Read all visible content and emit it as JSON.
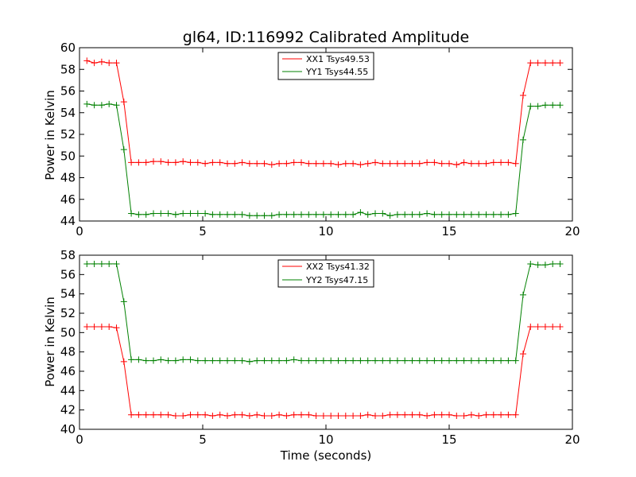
{
  "chart_data": [
    {
      "type": "line",
      "title": "gl64, ID:116992 Calibrated Amplitude",
      "xlabel": "",
      "ylabel": "Power in Kelvin",
      "xlim": [
        0,
        20
      ],
      "ylim": [
        44,
        60
      ],
      "xticks": [
        0,
        5,
        10,
        15,
        20
      ],
      "yticks": [
        44,
        46,
        48,
        50,
        52,
        54,
        56,
        58,
        60
      ],
      "grid": false,
      "legend_position": "top-center",
      "x": [
        0.3,
        0.6,
        0.9,
        1.2,
        1.5,
        1.8,
        2.1,
        2.4,
        2.7,
        3.0,
        3.3,
        3.6,
        3.9,
        4.2,
        4.5,
        4.8,
        5.1,
        5.4,
        5.7,
        6.0,
        6.3,
        6.6,
        6.9,
        7.2,
        7.5,
        7.8,
        8.1,
        8.4,
        8.7,
        9.0,
        9.3,
        9.6,
        9.9,
        10.2,
        10.5,
        10.8,
        11.1,
        11.4,
        11.7,
        12.0,
        12.3,
        12.6,
        12.9,
        13.2,
        13.5,
        13.8,
        14.1,
        14.4,
        14.7,
        15.0,
        15.3,
        15.6,
        15.9,
        16.2,
        16.5,
        16.8,
        17.1,
        17.4,
        17.7,
        18.0,
        18.3,
        18.6,
        18.9,
        19.2,
        19.5
      ],
      "series": [
        {
          "name": "XX1 Tsys49.53",
          "color": "#ff0000",
          "values": [
            58.8,
            58.6,
            58.7,
            58.6,
            58.6,
            55.0,
            49.4,
            49.4,
            49.4,
            49.5,
            49.5,
            49.4,
            49.4,
            49.5,
            49.4,
            49.4,
            49.3,
            49.4,
            49.4,
            49.3,
            49.3,
            49.4,
            49.3,
            49.3,
            49.3,
            49.2,
            49.3,
            49.3,
            49.4,
            49.4,
            49.3,
            49.3,
            49.3,
            49.3,
            49.2,
            49.3,
            49.3,
            49.2,
            49.3,
            49.4,
            49.3,
            49.3,
            49.3,
            49.3,
            49.3,
            49.3,
            49.4,
            49.4,
            49.3,
            49.3,
            49.2,
            49.4,
            49.3,
            49.3,
            49.3,
            49.4,
            49.4,
            49.4,
            49.3,
            55.6,
            58.6,
            58.6,
            58.6,
            58.6,
            58.6
          ]
        },
        {
          "name": "YY1 Tsys44.55",
          "color": "#008000",
          "values": [
            54.8,
            54.7,
            54.7,
            54.8,
            54.7,
            50.6,
            44.7,
            44.6,
            44.6,
            44.7,
            44.7,
            44.7,
            44.6,
            44.7,
            44.7,
            44.7,
            44.7,
            44.6,
            44.6,
            44.6,
            44.6,
            44.6,
            44.5,
            44.5,
            44.5,
            44.5,
            44.6,
            44.6,
            44.6,
            44.6,
            44.6,
            44.6,
            44.6,
            44.6,
            44.6,
            44.6,
            44.6,
            44.8,
            44.6,
            44.7,
            44.7,
            44.5,
            44.6,
            44.6,
            44.6,
            44.6,
            44.7,
            44.6,
            44.6,
            44.6,
            44.6,
            44.6,
            44.6,
            44.6,
            44.6,
            44.6,
            44.6,
            44.6,
            44.7,
            51.5,
            54.6,
            54.6,
            54.7,
            54.7,
            54.7
          ]
        }
      ]
    },
    {
      "type": "line",
      "title": "",
      "xlabel": "Time (seconds)",
      "ylabel": "Power in Kelvin",
      "xlim": [
        0,
        20
      ],
      "ylim": [
        40,
        58
      ],
      "xticks": [
        0,
        5,
        10,
        15,
        20
      ],
      "yticks": [
        40,
        42,
        44,
        46,
        48,
        50,
        52,
        54,
        56,
        58
      ],
      "grid": false,
      "legend_position": "top-center",
      "x": [
        0.3,
        0.6,
        0.9,
        1.2,
        1.5,
        1.8,
        2.1,
        2.4,
        2.7,
        3.0,
        3.3,
        3.6,
        3.9,
        4.2,
        4.5,
        4.8,
        5.1,
        5.4,
        5.7,
        6.0,
        6.3,
        6.6,
        6.9,
        7.2,
        7.5,
        7.8,
        8.1,
        8.4,
        8.7,
        9.0,
        9.3,
        9.6,
        9.9,
        10.2,
        10.5,
        10.8,
        11.1,
        11.4,
        11.7,
        12.0,
        12.3,
        12.6,
        12.9,
        13.2,
        13.5,
        13.8,
        14.1,
        14.4,
        14.7,
        15.0,
        15.3,
        15.6,
        15.9,
        16.2,
        16.5,
        16.8,
        17.1,
        17.4,
        17.7,
        18.0,
        18.3,
        18.6,
        18.9,
        19.2,
        19.5
      ],
      "series": [
        {
          "name": "XX2 Tsys41.32",
          "color": "#ff0000",
          "values": [
            50.6,
            50.6,
            50.6,
            50.6,
            50.5,
            47.0,
            41.5,
            41.5,
            41.5,
            41.5,
            41.5,
            41.5,
            41.4,
            41.4,
            41.5,
            41.5,
            41.5,
            41.4,
            41.5,
            41.4,
            41.5,
            41.5,
            41.4,
            41.5,
            41.4,
            41.4,
            41.5,
            41.4,
            41.5,
            41.5,
            41.5,
            41.4,
            41.4,
            41.4,
            41.4,
            41.4,
            41.4,
            41.4,
            41.5,
            41.4,
            41.4,
            41.5,
            41.5,
            41.5,
            41.5,
            41.5,
            41.4,
            41.5,
            41.5,
            41.5,
            41.4,
            41.4,
            41.5,
            41.4,
            41.5,
            41.5,
            41.5,
            41.5,
            41.5,
            47.8,
            50.6,
            50.6,
            50.6,
            50.6,
            50.6
          ]
        },
        {
          "name": "YY2 Tsys47.15",
          "color": "#008000",
          "values": [
            57.1,
            57.1,
            57.1,
            57.1,
            57.1,
            53.2,
            47.2,
            47.2,
            47.1,
            47.1,
            47.2,
            47.1,
            47.1,
            47.2,
            47.2,
            47.1,
            47.1,
            47.1,
            47.1,
            47.1,
            47.1,
            47.1,
            47.0,
            47.1,
            47.1,
            47.1,
            47.1,
            47.1,
            47.2,
            47.1,
            47.1,
            47.1,
            47.1,
            47.1,
            47.1,
            47.1,
            47.1,
            47.1,
            47.1,
            47.1,
            47.1,
            47.1,
            47.1,
            47.1,
            47.1,
            47.1,
            47.1,
            47.1,
            47.1,
            47.1,
            47.1,
            47.1,
            47.1,
            47.1,
            47.1,
            47.1,
            47.1,
            47.1,
            47.1,
            53.9,
            57.1,
            57.0,
            57.0,
            57.1,
            57.1
          ]
        }
      ]
    }
  ]
}
